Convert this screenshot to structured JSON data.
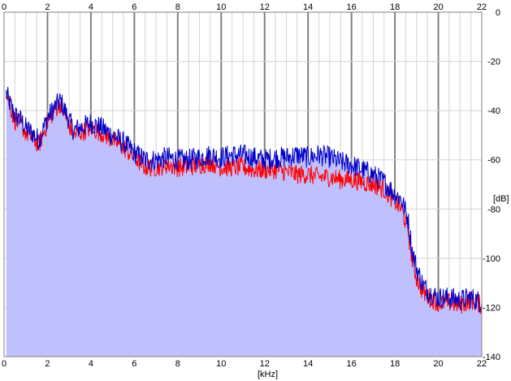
{
  "chart_data": {
    "type": "line",
    "title": "",
    "xlabel": "[kHz]",
    "ylabel": "[dB]",
    "xlim": [
      0,
      22
    ],
    "ylim": [
      -140,
      0
    ],
    "x_ticks": [
      "0",
      "2",
      "4",
      "6",
      "8",
      "10",
      "12",
      "14",
      "16",
      "18",
      "20",
      "22"
    ],
    "y_ticks": [
      "0",
      "-20",
      "-40",
      "-60",
      "-80",
      "-100",
      "-120",
      "-140"
    ],
    "grid": true,
    "legend": "none",
    "colors": {
      "background": "#ffffff",
      "fill": "#c0c0ff",
      "blue_series": "#0000c8",
      "red_series": "#ff0000",
      "grid_minor": "#d4d4d4",
      "grid_major": "#808080"
    },
    "series": [
      {
        "color": "#0000c8",
        "x": [
          0.1,
          0.3,
          0.5,
          0.8,
          1.0,
          1.3,
          1.6,
          2.0,
          2.3,
          2.6,
          2.9,
          3.2,
          3.5,
          4.0,
          4.5,
          5.0,
          5.5,
          6.0,
          6.5,
          7.0,
          7.5,
          8.0,
          8.5,
          9.0,
          9.5,
          10.0,
          10.5,
          11.0,
          11.5,
          12.0,
          12.5,
          13.0,
          13.5,
          14.0,
          14.5,
          15.0,
          15.5,
          16.0,
          16.5,
          17.0,
          17.5,
          18.0,
          18.3,
          18.6,
          18.8,
          19.0,
          19.3,
          19.6,
          20.0,
          20.5,
          21.0,
          21.5,
          22.0
        ],
        "values": [
          -33,
          -38,
          -42,
          -44,
          -47,
          -49,
          -52,
          -43,
          -39,
          -36,
          -42,
          -48,
          -47,
          -45,
          -47,
          -50,
          -53,
          -57,
          -60,
          -60,
          -59,
          -60,
          -60,
          -59,
          -58,
          -59,
          -58,
          -58,
          -59,
          -60,
          -59,
          -59,
          -58,
          -59,
          -58,
          -59,
          -61,
          -62,
          -64,
          -66,
          -69,
          -74,
          -76,
          -84,
          -97,
          -104,
          -111,
          -114,
          -116,
          -116,
          -117,
          -116,
          -118
        ]
      },
      {
        "color": "#ff0000",
        "x": [
          0.1,
          0.3,
          0.5,
          0.8,
          1.0,
          1.3,
          1.6,
          2.0,
          2.3,
          2.6,
          2.9,
          3.2,
          3.5,
          4.0,
          4.5,
          5.0,
          5.5,
          6.0,
          6.5,
          7.0,
          7.5,
          8.0,
          8.5,
          9.0,
          9.5,
          10.0,
          10.5,
          11.0,
          11.5,
          12.0,
          12.5,
          13.0,
          13.5,
          14.0,
          14.5,
          15.0,
          15.5,
          16.0,
          16.5,
          17.0,
          17.5,
          18.0,
          18.3,
          18.6,
          18.8,
          19.0,
          19.3,
          19.6,
          20.0,
          20.5,
          21.0,
          21.5,
          22.0
        ],
        "values": [
          -32,
          -39,
          -44,
          -46,
          -49,
          -51,
          -54,
          -45,
          -40,
          -37,
          -44,
          -50,
          -49,
          -47,
          -49,
          -52,
          -55,
          -59,
          -63,
          -63,
          -62,
          -63,
          -63,
          -62,
          -61,
          -63,
          -63,
          -63,
          -64,
          -64,
          -64,
          -65,
          -66,
          -66,
          -67,
          -67,
          -68,
          -68,
          -69,
          -70,
          -72,
          -77,
          -80,
          -88,
          -101,
          -108,
          -114,
          -116,
          -118,
          -118,
          -119,
          -117,
          -119
        ]
      }
    ]
  }
}
